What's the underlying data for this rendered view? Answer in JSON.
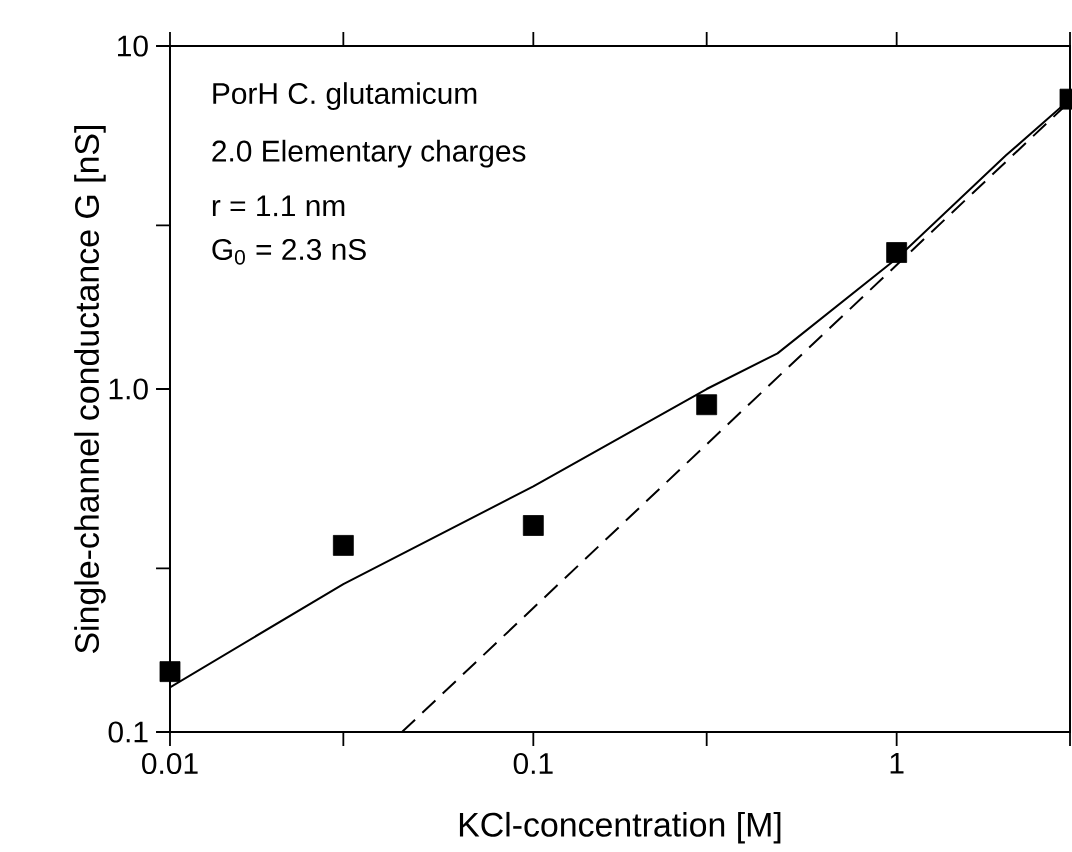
{
  "chart_data": {
    "type": "scatter",
    "xlabel": "KCl-concentration [M]",
    "ylabel": "Single-channel conductance G [nS]",
    "log": "xy",
    "xlim": [
      0.01,
      3
    ],
    "ylim": [
      0.1,
      10
    ],
    "xticks": [
      0.01,
      {
        "value": 0.03,
        "label": null
      },
      0.1,
      {
        "value": 0.3,
        "label": null
      },
      1,
      {
        "value": 3,
        "label": null
      }
    ],
    "yticks": [
      0.1,
      {
        "value": 0.3,
        "label": null
      },
      {
        "value": 1,
        "label": "1.0"
      },
      {
        "value": 3,
        "label": null
      },
      10
    ],
    "annotations": [
      "PorH C. glutamicum",
      "2.0 Elementary charges",
      "r = 1.1 nm",
      "G$_{0}$ = 2.3 nS"
    ],
    "series": [
      {
        "color": "#000000",
        "marker": "square",
        "x": [
          0.01,
          0.03,
          0.1,
          0.3,
          1,
          3
        ],
        "values": [
          0.15,
          0.35,
          0.4,
          0.9,
          2.5,
          7
        ]
      },
      {
        "type": "line",
        "color": "#000000",
        "marker": "none",
        "line_style": "solid",
        "x": [
          0.01,
          0.03,
          0.1,
          0.3,
          0.47,
          1,
          2,
          3
        ],
        "values": [
          0.135,
          0.27,
          0.52,
          1.0,
          1.27,
          2.4,
          4.8,
          7.0
        ]
      },
      {
        "type": "line",
        "color": "#000000",
        "marker": "none",
        "line_style": "dashed",
        "x": [
          0.0435,
          3
        ],
        "values": [
          0.1,
          6.9
        ]
      }
    ]
  }
}
